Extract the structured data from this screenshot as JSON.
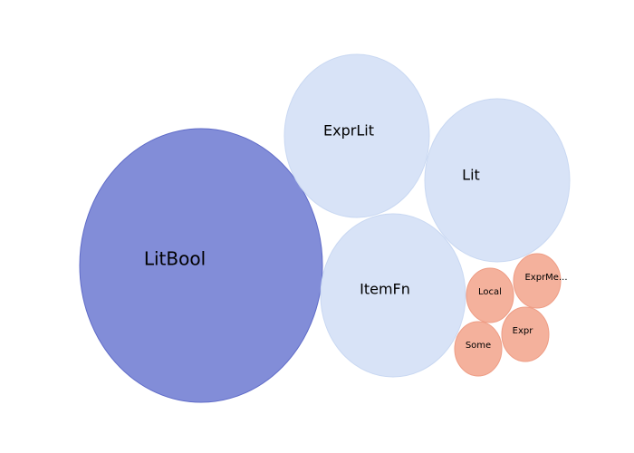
{
  "chart_data": {
    "type": "bubble",
    "title": "",
    "bubbles": [
      {
        "label": "LitBool",
        "value": 100,
        "color": "#7b87d6",
        "stroke": "#5f6bc8",
        "opacity": 0.95
      },
      {
        "label": "ExprLit",
        "value": 40,
        "color": "#d6e2f7",
        "stroke": "#c9d8f2",
        "opacity": 0.95
      },
      {
        "label": "Lit",
        "value": 40,
        "color": "#d6e2f7",
        "stroke": "#c9d8f2",
        "opacity": 0.95
      },
      {
        "label": "ItemFn",
        "value": 40,
        "color": "#d6e2f7",
        "stroke": "#c9d8f2",
        "opacity": 0.95
      },
      {
        "label": "Local",
        "value": 4.5,
        "color": "#f3ad97",
        "stroke": "#ee9c84",
        "opacity": 0.95
      },
      {
        "label": "ExprMe...",
        "value": 4.5,
        "color": "#f3ad97",
        "stroke": "#ee9c84",
        "opacity": 0.95
      },
      {
        "label": "Expr",
        "value": 4.5,
        "color": "#f3ad97",
        "stroke": "#ee9c84",
        "opacity": 0.95
      },
      {
        "label": "Some",
        "value": 4.5,
        "color": "#f3ad97",
        "stroke": "#ee9c84",
        "opacity": 0.95
      }
    ]
  }
}
